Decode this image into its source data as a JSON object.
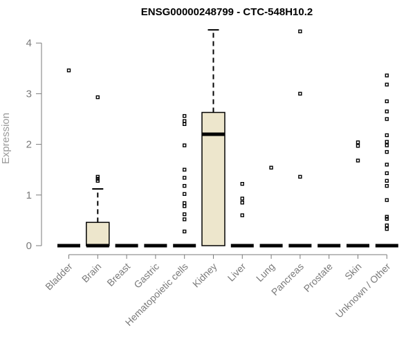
{
  "chart_data": {
    "type": "box",
    "title": "ENSG00000248799 - CTC-548H10.2",
    "xlabel": "",
    "ylabel": "Expression",
    "ylim": [
      0,
      4.3
    ],
    "yticks": [
      0,
      1,
      2,
      3,
      4
    ],
    "grid": false,
    "colors": {
      "box_fill": "#ede6cc",
      "box_stroke": "#000000",
      "axis": "#7a7a7a"
    },
    "categories": [
      "Bladder",
      "Brain",
      "Breast",
      "Gastric",
      "Hematopoietic cells",
      "Kidney",
      "Liver",
      "Lung",
      "Pancreas",
      "Prostate",
      "Skin",
      "Unknown / Other"
    ],
    "boxes": [
      {
        "q1": 0,
        "median": 0,
        "q3": 0,
        "whisker_low": 0,
        "whisker_high": 0,
        "outliers": [
          3.46
        ]
      },
      {
        "q1": 0,
        "median": 0,
        "q3": 0.46,
        "whisker_low": 0,
        "whisker_high": 1.12,
        "outliers": [
          1.28,
          1.32,
          1.36,
          2.93
        ]
      },
      {
        "q1": 0,
        "median": 0,
        "q3": 0,
        "whisker_low": 0,
        "whisker_high": 0,
        "outliers": []
      },
      {
        "q1": 0,
        "median": 0,
        "q3": 0,
        "whisker_low": 0,
        "whisker_high": 0,
        "outliers": []
      },
      {
        "q1": 0,
        "median": 0,
        "q3": 0,
        "whisker_low": 0,
        "whisker_high": 0,
        "outliers": [
          0.28,
          0.52,
          0.62,
          0.78,
          0.84,
          1.02,
          1.18,
          1.34,
          1.5,
          1.98,
          2.4,
          2.46,
          2.56
        ]
      },
      {
        "q1": 0,
        "median": 2.2,
        "q3": 2.63,
        "whisker_low": 0,
        "whisker_high": 4.26,
        "outliers": []
      },
      {
        "q1": 0,
        "median": 0,
        "q3": 0,
        "whisker_low": 0,
        "whisker_high": 0,
        "outliers": [
          0.6,
          0.85,
          0.93,
          1.22
        ]
      },
      {
        "q1": 0,
        "median": 0,
        "q3": 0,
        "whisker_low": 0,
        "whisker_high": 0,
        "outliers": [
          1.54
        ]
      },
      {
        "q1": 0,
        "median": 0,
        "q3": 0,
        "whisker_low": 0,
        "whisker_high": 0,
        "outliers": [
          1.36,
          3.0,
          4.23
        ]
      },
      {
        "q1": 0,
        "median": 0,
        "q3": 0,
        "whisker_low": 0,
        "whisker_high": 0,
        "outliers": []
      },
      {
        "q1": 0,
        "median": 0,
        "q3": 0,
        "whisker_low": 0,
        "whisker_high": 0,
        "outliers": [
          1.68,
          1.97,
          2.04
        ]
      },
      {
        "q1": 0,
        "median": 0,
        "q3": 0,
        "whisker_low": 0,
        "whisker_high": 0,
        "outliers": [
          0.33,
          0.4,
          0.53,
          0.57,
          0.9,
          1.18,
          1.28,
          1.43,
          1.6,
          1.85,
          1.98,
          2.05,
          2.18,
          2.5,
          2.65,
          2.85,
          3.18,
          3.36
        ]
      }
    ]
  }
}
